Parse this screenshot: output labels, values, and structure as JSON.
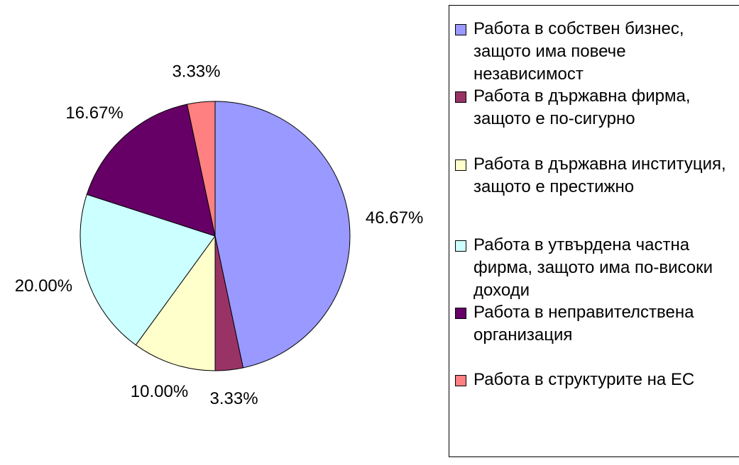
{
  "chart_data": {
    "type": "pie",
    "categories": [
      "Работа в собствен бизнес, защото има повече независимост",
      "Работа в държавна фирма, защото е по-сигурно",
      "Работа в държавна институция, защото е престижно",
      "Работа в утвърдена частна фирма, защото има по-високи доходи",
      "Работа в неправителствена организация",
      "Работа в структурите на ЕС"
    ],
    "values": [
      46.67,
      3.33,
      10.0,
      20.0,
      16.67,
      3.33
    ],
    "value_labels": [
      "46.67%",
      "3.33%",
      "10.00%",
      "20.00%",
      "16.67%",
      "3.33%"
    ],
    "colors": [
      "#9999ff",
      "#993366",
      "#ffffcc",
      "#ccffff",
      "#660066",
      "#ff8080"
    ],
    "legend": "right"
  }
}
